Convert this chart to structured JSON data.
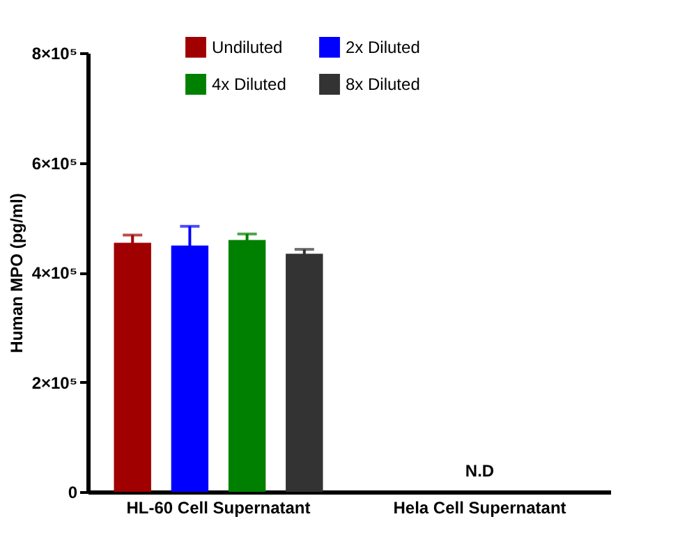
{
  "chart_data": {
    "type": "bar",
    "ylabel": "Human MPO (pg/ml)",
    "categories": [
      "HL-60 Cell Supernatant",
      "Hela Cell Supernatant"
    ],
    "series": [
      {
        "name": "Undiluted",
        "color": "#a00000",
        "values": [
          454000,
          null
        ],
        "errors": [
          14000,
          null
        ]
      },
      {
        "name": "2x Diluted",
        "color": "#0000ff",
        "values": [
          449000,
          null
        ],
        "errors": [
          35000,
          null
        ]
      },
      {
        "name": "4x Diluted",
        "color": "#008000",
        "values": [
          459000,
          null
        ],
        "errors": [
          11000,
          null
        ]
      },
      {
        "name": "8x Diluted",
        "color": "#333333",
        "values": [
          434000,
          null
        ],
        "errors": [
          8000,
          null
        ]
      }
    ],
    "ylim": [
      0,
      800000
    ],
    "yticks": [
      0,
      {
        "value": 200000,
        "label": "2×10⁵"
      },
      {
        "value": 400000,
        "label": "4×10⁵"
      },
      {
        "value": 600000,
        "label": "6×10⁵"
      },
      {
        "value": 800000,
        "label": "8×10⁵"
      }
    ],
    "annotations": [
      "N.D"
    ],
    "grid": false,
    "legend": "top"
  }
}
